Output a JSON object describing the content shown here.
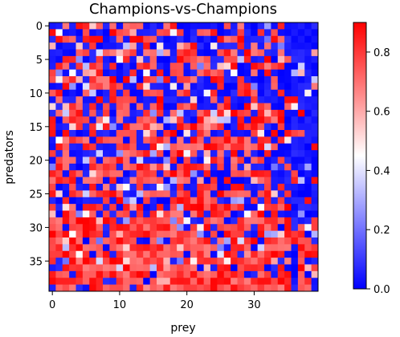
{
  "chart_data": {
    "type": "heatmap",
    "title": "Champions-vs-Champions",
    "xlabel": "prey",
    "ylabel": "predators",
    "rows": 40,
    "cols": 40,
    "x_ticks": [
      "0",
      "10",
      "20",
      "30"
    ],
    "x_tick_values": [
      0,
      10,
      20,
      30
    ],
    "y_ticks": [
      "0",
      "5",
      "10",
      "15",
      "20",
      "25",
      "30",
      "35"
    ],
    "y_tick_values": [
      0,
      5,
      10,
      15,
      20,
      25,
      30,
      35
    ],
    "colorbar": {
      "min": 0.0,
      "max": 0.9,
      "tick_labels": [
        "0.0",
        "0.2",
        "0.4",
        "0.6",
        "0.8"
      ],
      "tick_values": [
        0.0,
        0.2,
        0.4,
        0.6,
        0.8
      ]
    },
    "colormap": "bwr",
    "colors": {
      "low": "#0000ff",
      "mid": "#ffffff",
      "high": "#ff0000"
    },
    "seed": 98765
  }
}
